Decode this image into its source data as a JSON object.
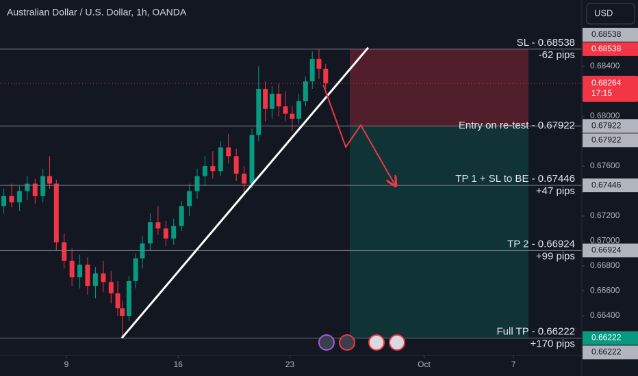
{
  "header": {
    "title": "Australian Dollar / U.S. Dollar, 1h, OANDA",
    "currency": "USD"
  },
  "chart_data": {
    "type": "candlestick",
    "x": [
      -2.8,
      -2.45,
      -2.1,
      -1.75,
      -1.4,
      -1.05,
      -0.75,
      -0.45,
      -0.1,
      0.25,
      0.6,
      0.95,
      1.3,
      1.65,
      2.0,
      2.3,
      2.5,
      2.8,
      3.1,
      3.4,
      3.75,
      4.1,
      4.45,
      4.8,
      5.15,
      5.5,
      5.85,
      6.2,
      6.55,
      6.9,
      7.25,
      7.6,
      7.95,
      8.3,
      8.6,
      8.9,
      9.2,
      9.5,
      9.8,
      10.1,
      10.4,
      10.7,
      11.0,
      11.3,
      11.6
    ],
    "open": [
      0.6728,
      0.6736,
      0.6731,
      0.674,
      0.6746,
      0.6736,
      0.6752,
      0.6746,
      0.6699,
      0.6684,
      0.6671,
      0.6681,
      0.6664,
      0.6674,
      0.6667,
      0.6658,
      0.6646,
      0.664,
      0.6668,
      0.6686,
      0.6698,
      0.6715,
      0.671,
      0.6702,
      0.6712,
      0.6728,
      0.674,
      0.6752,
      0.676,
      0.6756,
      0.6775,
      0.6768,
      0.6754,
      0.6746,
      0.6785,
      0.6822,
      0.6806,
      0.6818,
      0.6808,
      0.6802,
      0.6798,
      0.6812,
      0.6828,
      0.6846,
      0.6838
    ],
    "high": [
      0.6742,
      0.6746,
      0.6744,
      0.6752,
      0.675,
      0.6758,
      0.6768,
      0.6749,
      0.6706,
      0.6694,
      0.6689,
      0.6687,
      0.6679,
      0.6684,
      0.6676,
      0.6668,
      0.6652,
      0.6672,
      0.669,
      0.6704,
      0.6722,
      0.6728,
      0.6716,
      0.6718,
      0.6732,
      0.6746,
      0.6758,
      0.6768,
      0.6772,
      0.678,
      0.6786,
      0.6774,
      0.676,
      0.679,
      0.684,
      0.6828,
      0.6824,
      0.6826,
      0.682,
      0.6808,
      0.6818,
      0.6832,
      0.6852,
      0.6854,
      0.6842
    ],
    "low": [
      0.6722,
      0.6727,
      0.6724,
      0.6733,
      0.673,
      0.6731,
      0.6742,
      0.6692,
      0.6678,
      0.6664,
      0.6662,
      0.6657,
      0.6654,
      0.6659,
      0.665,
      0.664,
      0.6622,
      0.6636,
      0.6662,
      0.6678,
      0.6692,
      0.6705,
      0.6696,
      0.6697,
      0.6708,
      0.672,
      0.6734,
      0.6744,
      0.675,
      0.6752,
      0.6762,
      0.6748,
      0.6738,
      0.6742,
      0.678,
      0.6796,
      0.6798,
      0.68,
      0.6796,
      0.6788,
      0.6794,
      0.6808,
      0.6822,
      0.683,
      0.6822
    ],
    "close": [
      0.6736,
      0.6731,
      0.674,
      0.6746,
      0.6736,
      0.6752,
      0.6746,
      0.6699,
      0.6684,
      0.6671,
      0.6681,
      0.6664,
      0.6674,
      0.6667,
      0.6658,
      0.6646,
      0.664,
      0.6668,
      0.6686,
      0.6698,
      0.6715,
      0.671,
      0.6702,
      0.6712,
      0.6728,
      0.674,
      0.6752,
      0.676,
      0.6756,
      0.6775,
      0.6768,
      0.6754,
      0.6746,
      0.6785,
      0.6822,
      0.6806,
      0.6818,
      0.6808,
      0.6802,
      0.6798,
      0.6812,
      0.6828,
      0.6846,
      0.6838,
      0.68264
    ],
    "up_color": "#089981",
    "down_color": "#f23645",
    "xlim": [
      -2.97,
      23.06
    ],
    "xticks": [
      {
        "value": 0,
        "label": "9"
      },
      {
        "value": 5,
        "label": "16"
      },
      {
        "value": 10,
        "label": "23"
      },
      {
        "value": 16,
        "label": "Oct"
      },
      {
        "value": 20,
        "label": "7"
      }
    ],
    "ylim": [
      0.66082,
      0.68932
    ],
    "yticks": [
      {
        "value": 0.684,
        "label": "0.68400"
      },
      {
        "value": 0.68,
        "label": "0.68000"
      },
      {
        "value": 0.676,
        "label": "0.67600"
      },
      {
        "value": 0.672,
        "label": "0.67200"
      },
      {
        "value": 0.67,
        "label": "0.67000"
      },
      {
        "value": 0.668,
        "label": "0.66800"
      },
      {
        "value": 0.666,
        "label": "0.66600"
      },
      {
        "value": 0.664,
        "label": "0.66400"
      }
    ],
    "levels": [
      {
        "label": "SL - 0.68538",
        "note": "-62 pips",
        "value": 0.68538,
        "colors": [
          "#f23645",
          "#b2b5be"
        ]
      },
      {
        "label": "Entry on re-test - 0.67922",
        "value": 0.67922,
        "colors": [
          "#b2b5be",
          "#b2b5be"
        ]
      },
      {
        "label": "TP 1 + SL to BE - 0.67446",
        "note": "+47 pips",
        "value": 0.67446,
        "colors": [
          "#b2b5be"
        ]
      },
      {
        "label": "TP 2 - 0.66924",
        "note": "+99 pips",
        "value": 0.66924,
        "colors": [
          "#b2b5be"
        ]
      },
      {
        "label": "Full TP - 0.66222",
        "note": "+170 pips",
        "value": 0.66222,
        "colors": [
          "#089981",
          "#b2b5be"
        ]
      }
    ],
    "last_price": {
      "value": 0.68264,
      "countdown": "17:15",
      "color": "#f23645"
    },
    "position": {
      "x": [
        12.68,
        20.67
      ]
    },
    "trendline": {
      "x": [
        2.48,
        13.5
      ],
      "y": [
        0.66222,
        0.6855
      ]
    },
    "projection": {
      "x": [
        11.49,
        12.5,
        13.17,
        14.73
      ],
      "y": [
        0.68252,
        0.67753,
        0.67929,
        0.67441
      ]
    }
  }
}
